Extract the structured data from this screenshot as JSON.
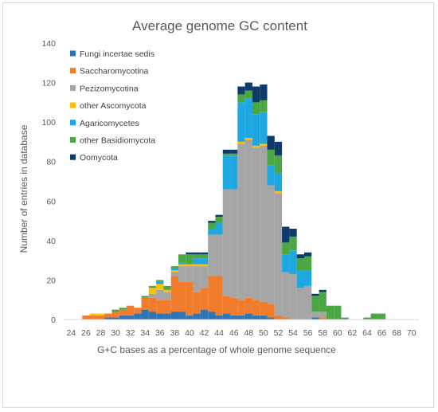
{
  "chart_data": {
    "type": "bar",
    "stacked": true,
    "title": "Average genome  GC content",
    "xlabel": "G+C bases as a percentage of whole genome sequence",
    "ylabel": "Number of entries in database",
    "ylim": [
      0,
      140
    ],
    "yticks": [
      "0",
      "20",
      "40",
      "60",
      "80",
      "100",
      "120",
      "140"
    ],
    "xticks": [
      "24",
      "26",
      "28",
      "30",
      "32",
      "34",
      "36",
      "38",
      "40",
      "42",
      "44",
      "46",
      "48",
      "50",
      "52",
      "54",
      "56",
      "58",
      "60",
      "62",
      "64",
      "66",
      "68",
      "70"
    ],
    "grid": false,
    "legend_position": "top-left",
    "x": [
      25,
      26,
      27,
      28,
      29,
      30,
      31,
      32,
      33,
      34,
      35,
      36,
      37,
      38,
      39,
      40,
      41,
      42,
      43,
      44,
      45,
      46,
      47,
      48,
      49,
      50,
      51,
      52,
      53,
      54,
      55,
      56,
      57,
      58,
      59,
      60,
      61,
      62,
      63,
      64,
      65,
      66,
      67,
      68,
      69
    ],
    "series": [
      {
        "name": "Fungi incertae sedis",
        "color": "#2e75b6",
        "values": [
          0,
          0,
          0,
          0,
          1,
          1,
          2,
          2,
          3,
          5,
          4,
          3,
          3,
          4,
          4,
          2,
          3,
          5,
          4,
          2,
          3,
          2,
          2,
          3,
          2,
          2,
          1,
          0,
          0,
          0,
          0,
          0,
          1,
          0,
          0,
          0,
          0,
          0,
          0,
          0,
          0,
          0,
          0,
          0,
          0
        ]
      },
      {
        "name": "Saccharomycotina",
        "color": "#f07c2c",
        "values": [
          0,
          2,
          2,
          2,
          2,
          3,
          3,
          5,
          3,
          6,
          7,
          7,
          7,
          18,
          15,
          17,
          11,
          11,
          18,
          20,
          9,
          9,
          8,
          8,
          8,
          7,
          7,
          2,
          1,
          0,
          0,
          0,
          0,
          1,
          0,
          0,
          0,
          0,
          0,
          0,
          0,
          0,
          0,
          0,
          0
        ]
      },
      {
        "name": "Pezizomycotina",
        "color": "#a5a5a5",
        "values": [
          0,
          0,
          0,
          0,
          0,
          0,
          0,
          0,
          0,
          0,
          2,
          5,
          4,
          2,
          8,
          8,
          13,
          11,
          21,
          21,
          54,
          55,
          79,
          80,
          77,
          79,
          60,
          62,
          23,
          23,
          16,
          17,
          3,
          3,
          0,
          0,
          0,
          0,
          0,
          0,
          0,
          0,
          0,
          0,
          0
        ]
      },
      {
        "name": "other Ascomycota",
        "color": "#ffc000",
        "values": [
          0,
          0,
          1,
          1,
          0,
          0,
          0,
          0,
          0,
          0,
          3,
          3,
          1,
          1,
          1,
          1,
          1,
          1,
          0,
          0,
          0,
          0,
          1,
          1,
          1,
          1,
          0,
          1,
          0,
          0,
          0,
          0,
          0,
          0,
          0,
          0,
          0,
          0,
          0,
          0,
          0,
          0,
          0,
          0,
          0
        ]
      },
      {
        "name": "Agaricomycetes",
        "color": "#1ea7e1",
        "values": [
          0,
          0,
          0,
          0,
          0,
          0,
          0,
          0,
          0,
          0,
          0,
          1,
          0,
          1,
          1,
          0,
          3,
          3,
          3,
          6,
          17,
          17,
          20,
          20,
          16,
          16,
          10,
          9,
          9,
          12,
          9,
          8,
          0,
          0,
          0,
          0,
          0,
          0,
          0,
          0,
          0,
          0,
          0,
          0,
          0
        ]
      },
      {
        "name": "other Basidiomycota",
        "color": "#4aa744",
        "values": [
          0,
          0,
          0,
          0,
          0,
          1,
          1,
          0,
          0,
          1,
          1,
          1,
          2,
          1,
          4,
          5,
          2,
          2,
          3,
          3,
          1,
          1,
          4,
          4,
          6,
          6,
          8,
          9,
          6,
          7,
          6,
          7,
          8,
          10,
          7,
          7,
          1,
          0,
          0,
          1,
          3,
          3,
          0,
          0,
          0
        ]
      },
      {
        "name": "Oomycota",
        "color": "#0f3b6a",
        "values": [
          0,
          0,
          0,
          0,
          0,
          0,
          0,
          0,
          0,
          0,
          0,
          0,
          0,
          0,
          0,
          1,
          1,
          1,
          1,
          1,
          2,
          2,
          4,
          4,
          8,
          8,
          7,
          7,
          8,
          4,
          2,
          2,
          1,
          1,
          0,
          0,
          0,
          0,
          0,
          0,
          0,
          0,
          0,
          0,
          0
        ]
      }
    ]
  }
}
